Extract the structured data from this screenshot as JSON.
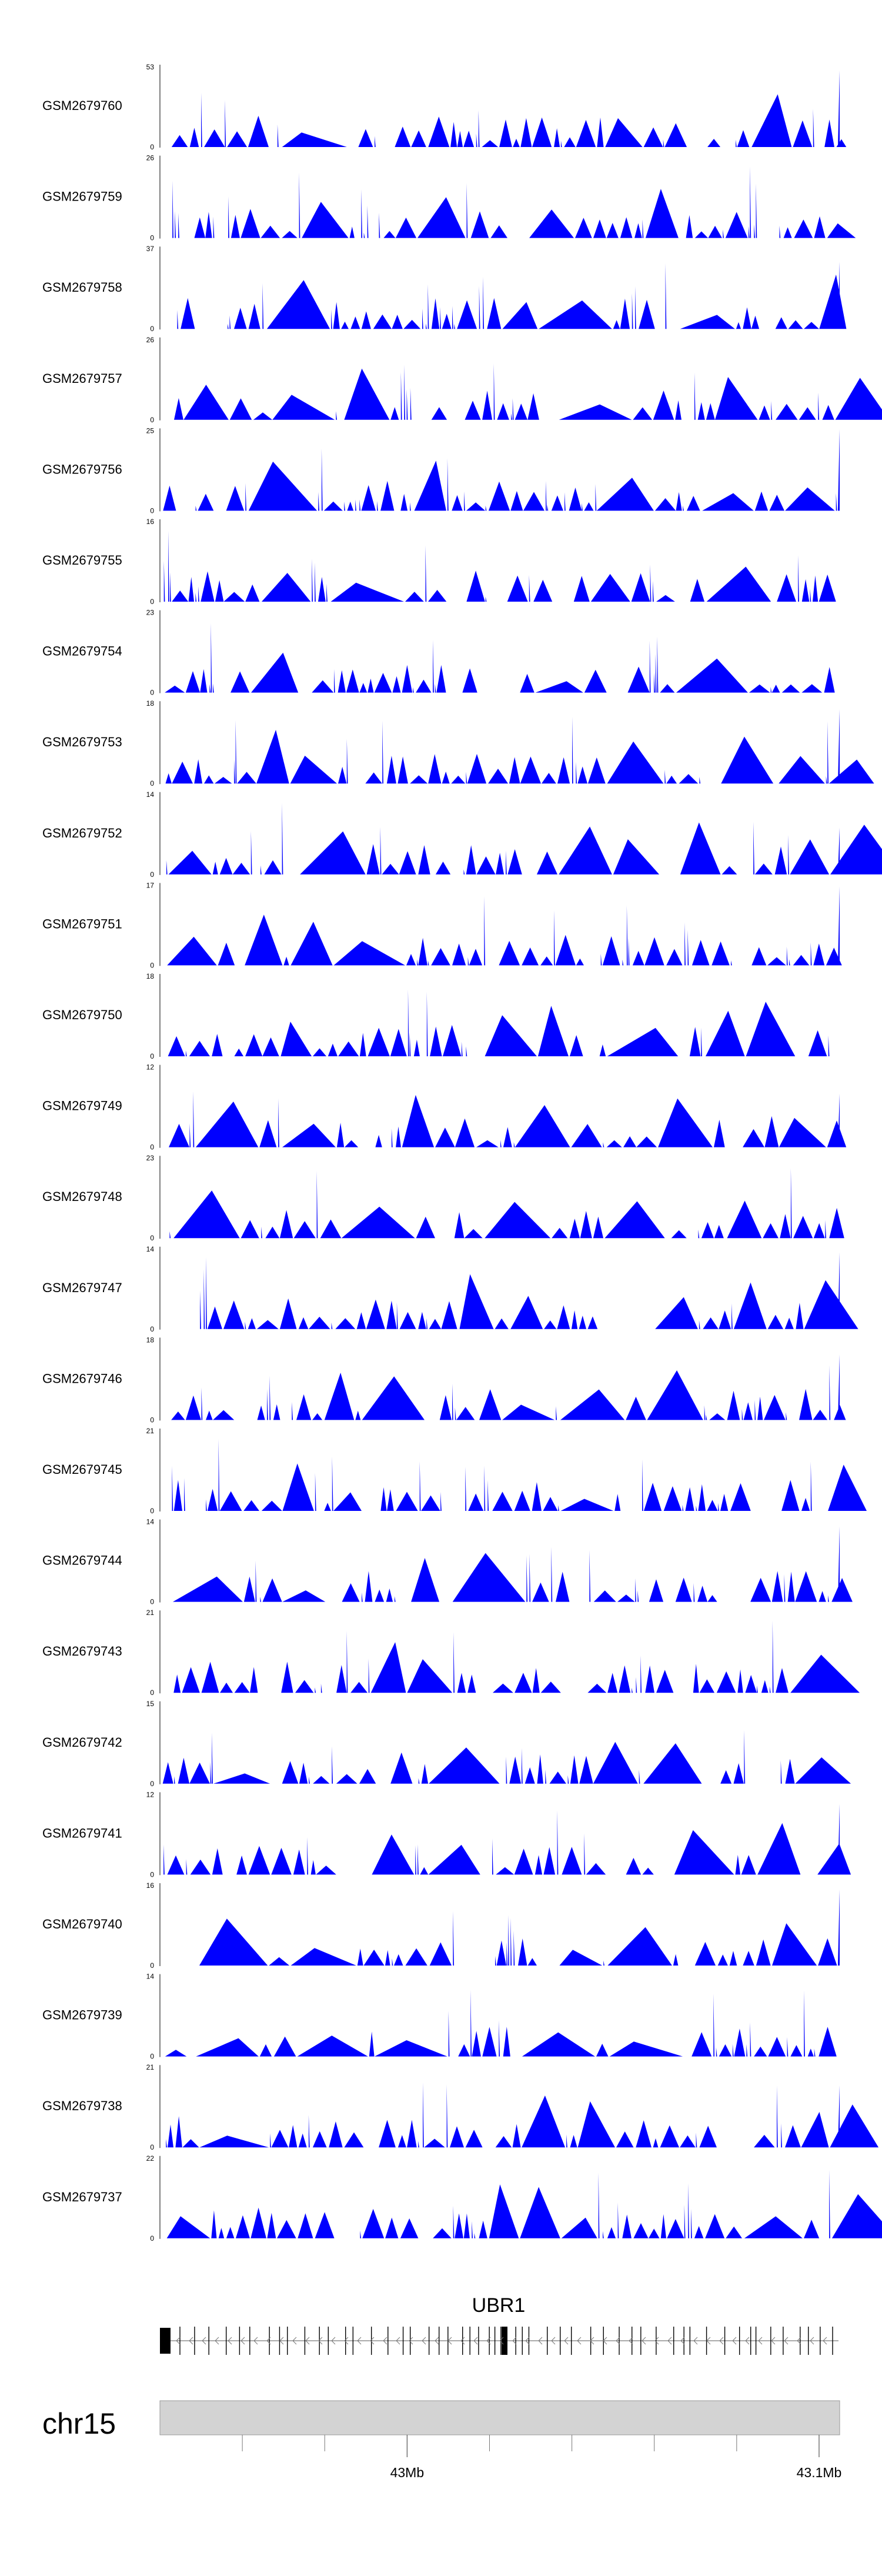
{
  "chart_data": {
    "type": "area",
    "title": "",
    "chromosome": "chr15",
    "gene": "UBR1",
    "genomic_axis": {
      "unit": "Mb",
      "range": [
        42.94,
        43.105
      ],
      "major_ticks": [
        {
          "value": 43.0,
          "label": "43Mb"
        },
        {
          "value": 43.1,
          "label": "43.1Mb"
        }
      ],
      "minor_ticks": [
        42.96,
        42.98,
        43.02,
        43.04,
        43.06,
        43.08
      ]
    },
    "fill_color": "#0000ff",
    "tracks": [
      {
        "name": "GSM2679760",
        "ymin": 0,
        "ymax": 53
      },
      {
        "name": "GSM2679759",
        "ymin": 0,
        "ymax": 26
      },
      {
        "name": "GSM2679758",
        "ymin": 0,
        "ymax": 37
      },
      {
        "name": "GSM2679757",
        "ymin": 0,
        "ymax": 26
      },
      {
        "name": "GSM2679756",
        "ymin": 0,
        "ymax": 25
      },
      {
        "name": "GSM2679755",
        "ymin": 0,
        "ymax": 16
      },
      {
        "name": "GSM2679754",
        "ymin": 0,
        "ymax": 23
      },
      {
        "name": "GSM2679753",
        "ymin": 0,
        "ymax": 18
      },
      {
        "name": "GSM2679752",
        "ymin": 0,
        "ymax": 14
      },
      {
        "name": "GSM2679751",
        "ymin": 0,
        "ymax": 17
      },
      {
        "name": "GSM2679750",
        "ymin": 0,
        "ymax": 18
      },
      {
        "name": "GSM2679749",
        "ymin": 0,
        "ymax": 12
      },
      {
        "name": "GSM2679748",
        "ymin": 0,
        "ymax": 23
      },
      {
        "name": "GSM2679747",
        "ymin": 0,
        "ymax": 14
      },
      {
        "name": "GSM2679746",
        "ymin": 0,
        "ymax": 18
      },
      {
        "name": "GSM2679745",
        "ymin": 0,
        "ymax": 21
      },
      {
        "name": "GSM2679744",
        "ymin": 0,
        "ymax": 14
      },
      {
        "name": "GSM2679743",
        "ymin": 0,
        "ymax": 21
      },
      {
        "name": "GSM2679742",
        "ymin": 0,
        "ymax": 15
      },
      {
        "name": "GSM2679741",
        "ymin": 0,
        "ymax": 12
      },
      {
        "name": "GSM2679740",
        "ymin": 0,
        "ymax": 16
      },
      {
        "name": "GSM2679739",
        "ymin": 0,
        "ymax": 14
      },
      {
        "name": "GSM2679738",
        "ymin": 0,
        "ymax": 21
      },
      {
        "name": "GSM2679737",
        "ymin": 0,
        "ymax": 22
      }
    ]
  }
}
